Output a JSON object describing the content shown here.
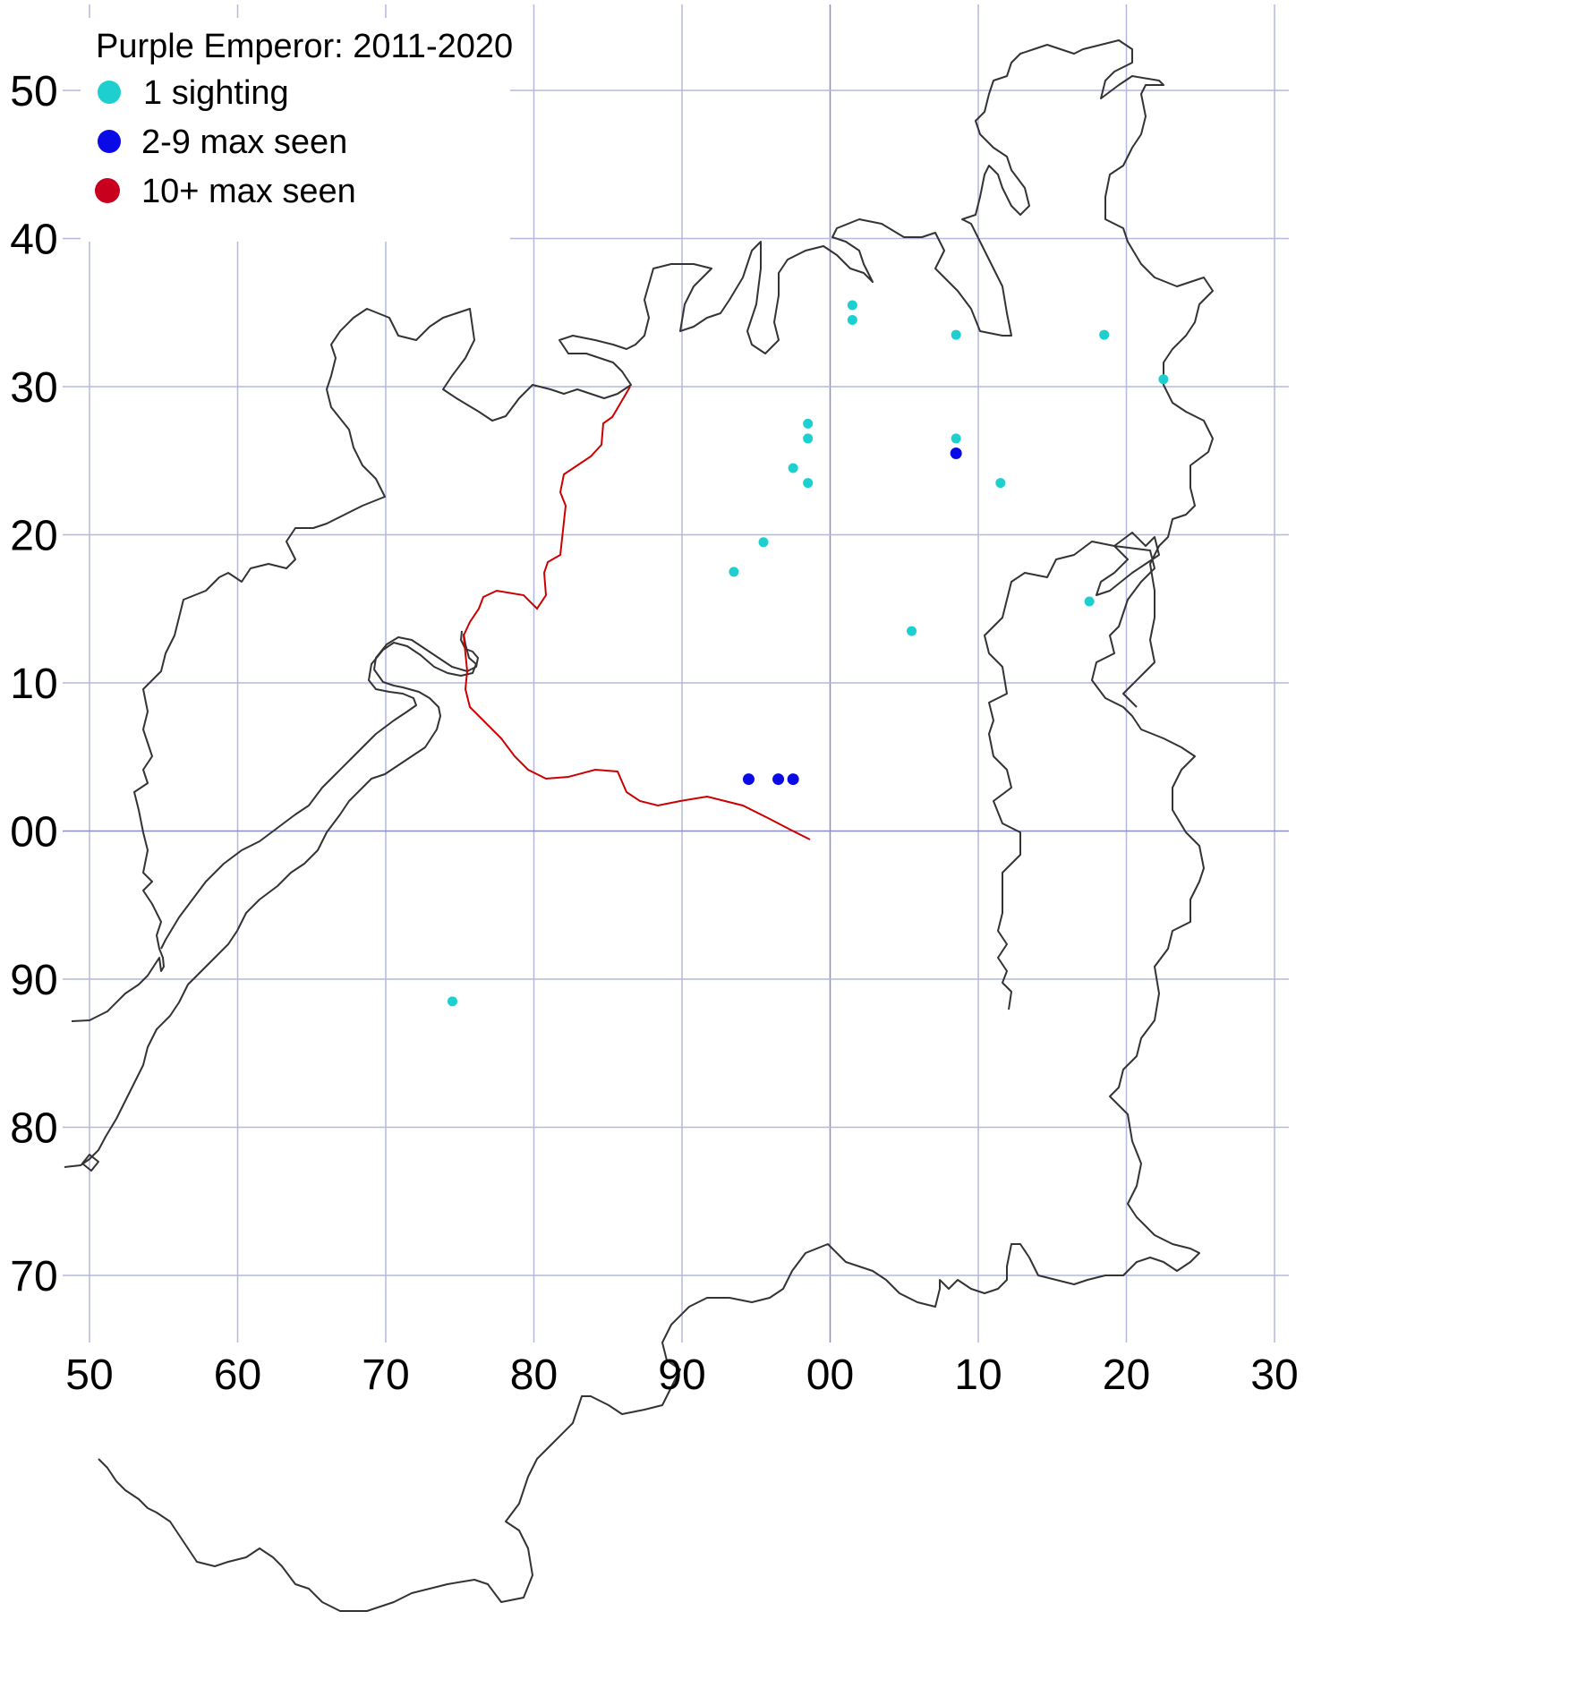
{
  "legend": {
    "title": "Purple Emperor:  2011-2020",
    "items": [
      {
        "label": "1 sighting",
        "color": "#1ecfcf"
      },
      {
        "label": "2-9 max seen",
        "color": "#0a0ae6"
      },
      {
        "label": "10+ max seen",
        "color": "#c8001e"
      }
    ]
  },
  "colors": {
    "grid": "#b4b8dc",
    "axis_line": "#8a8ec4",
    "outline": "#333333",
    "border": "#cc0000"
  },
  "chart_data": {
    "type": "scatter",
    "x_ticks": [
      "50",
      "60",
      "70",
      "80",
      "90",
      "00",
      "10",
      "20",
      "30"
    ],
    "y_ticks": [
      "50",
      "40",
      "30",
      "20",
      "10",
      "00",
      "90",
      "80",
      "70"
    ],
    "xlim": [
      49,
      130
    ],
    "ylim": [
      66,
      155
    ],
    "series": [
      {
        "name": "1 sighting",
        "color": "#1ecfcf",
        "points": [
          [
            101.5,
            135.5
          ],
          [
            101.5,
            134.5
          ],
          [
            108.5,
            133.5
          ],
          [
            118.5,
            133.5
          ],
          [
            122.5,
            130.5
          ],
          [
            98.5,
            127.5
          ],
          [
            98.5,
            126.5
          ],
          [
            108.5,
            126.5
          ],
          [
            97.5,
            124.5
          ],
          [
            98.5,
            123.5
          ],
          [
            111.5,
            123.5
          ],
          [
            95.5,
            119.5
          ],
          [
            93.5,
            117.5
          ],
          [
            117.5,
            115.5
          ],
          [
            105.5,
            113.5
          ],
          [
            74.5,
            88.5
          ]
        ]
      },
      {
        "name": "2-9 max seen",
        "color": "#0a0ae6",
        "points": [
          [
            108.5,
            125.5
          ],
          [
            94.5,
            103.5
          ],
          [
            96.5,
            103.5
          ],
          [
            97.5,
            103.5
          ]
        ]
      },
      {
        "name": "10+ max seen",
        "color": "#c8001e",
        "points": []
      }
    ]
  }
}
